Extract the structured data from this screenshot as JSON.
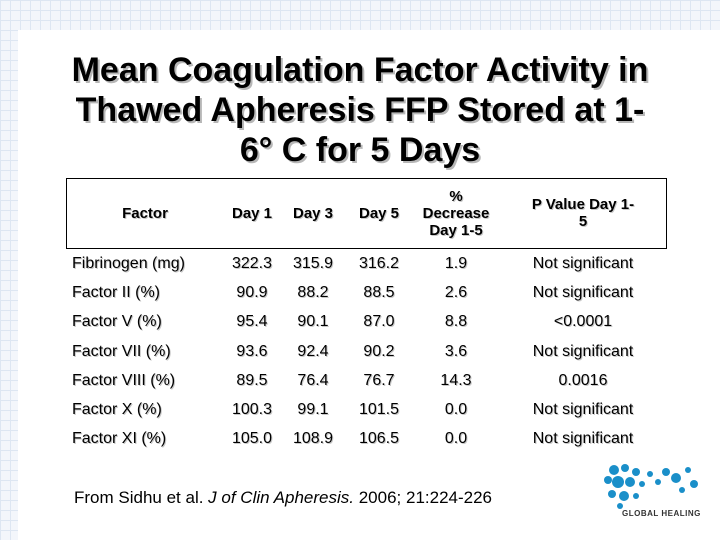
{
  "slide": {
    "title_lines": [
      "Mean Coagulation Factor Activity in",
      "Thawed Apheresis FFP Stored at 1-",
      "6° C for 5 Days"
    ]
  },
  "table": {
    "headers": {
      "factor": "Factor",
      "day1": "Day 1",
      "day3": "Day 3",
      "day5": "Day 5",
      "pct_line1": "%",
      "pct_line2": "Decrease",
      "pct_line3": "Day 1-5",
      "pval_line1": "P Value Day 1-",
      "pval_line2": "5"
    },
    "rows": [
      {
        "factor": "Fibrinogen (mg)",
        "day1": "322.3",
        "day3": "315.9",
        "day5": "316.2",
        "pct": "1.9",
        "pval": "Not significant"
      },
      {
        "factor": "Factor II (%)",
        "day1": "90.9",
        "day3": "88.2",
        "day5": "88.5",
        "pct": "2.6",
        "pval": "Not significant"
      },
      {
        "factor": "Factor V (%)",
        "day1": "95.4",
        "day3": "90.1",
        "day5": "87.0",
        "pct": "8.8",
        "pval": "<0.0001"
      },
      {
        "factor": "Factor VII (%)",
        "day1": "93.6",
        "day3": "92.4",
        "day5": "90.2",
        "pct": "3.6",
        "pval": "Not significant"
      },
      {
        "factor": "Factor VIII (%)",
        "day1": "89.5",
        "day3": "76.4",
        "day5": "76.7",
        "pct": "14.3",
        "pval": "0.0016"
      },
      {
        "factor": "Factor X (%)",
        "day1": "100.3",
        "day3": "99.1",
        "day5": "101.5",
        "pct": "0.0",
        "pval": "Not significant"
      },
      {
        "factor": "Factor XI (%)",
        "day1": "105.0",
        "day3": "108.9",
        "day5": "106.5",
        "pct": "0.0",
        "pval": "Not significant"
      }
    ]
  },
  "citation": {
    "prefix": "From Sidhu et al.  ",
    "journal": "J of Clin Apheresis.",
    "suffix": " 2006; 21:224-226"
  },
  "logo": {
    "text": "GLOBAL HEALING",
    "icon": "globe-dots-icon",
    "color": "#1a8fc9"
  }
}
